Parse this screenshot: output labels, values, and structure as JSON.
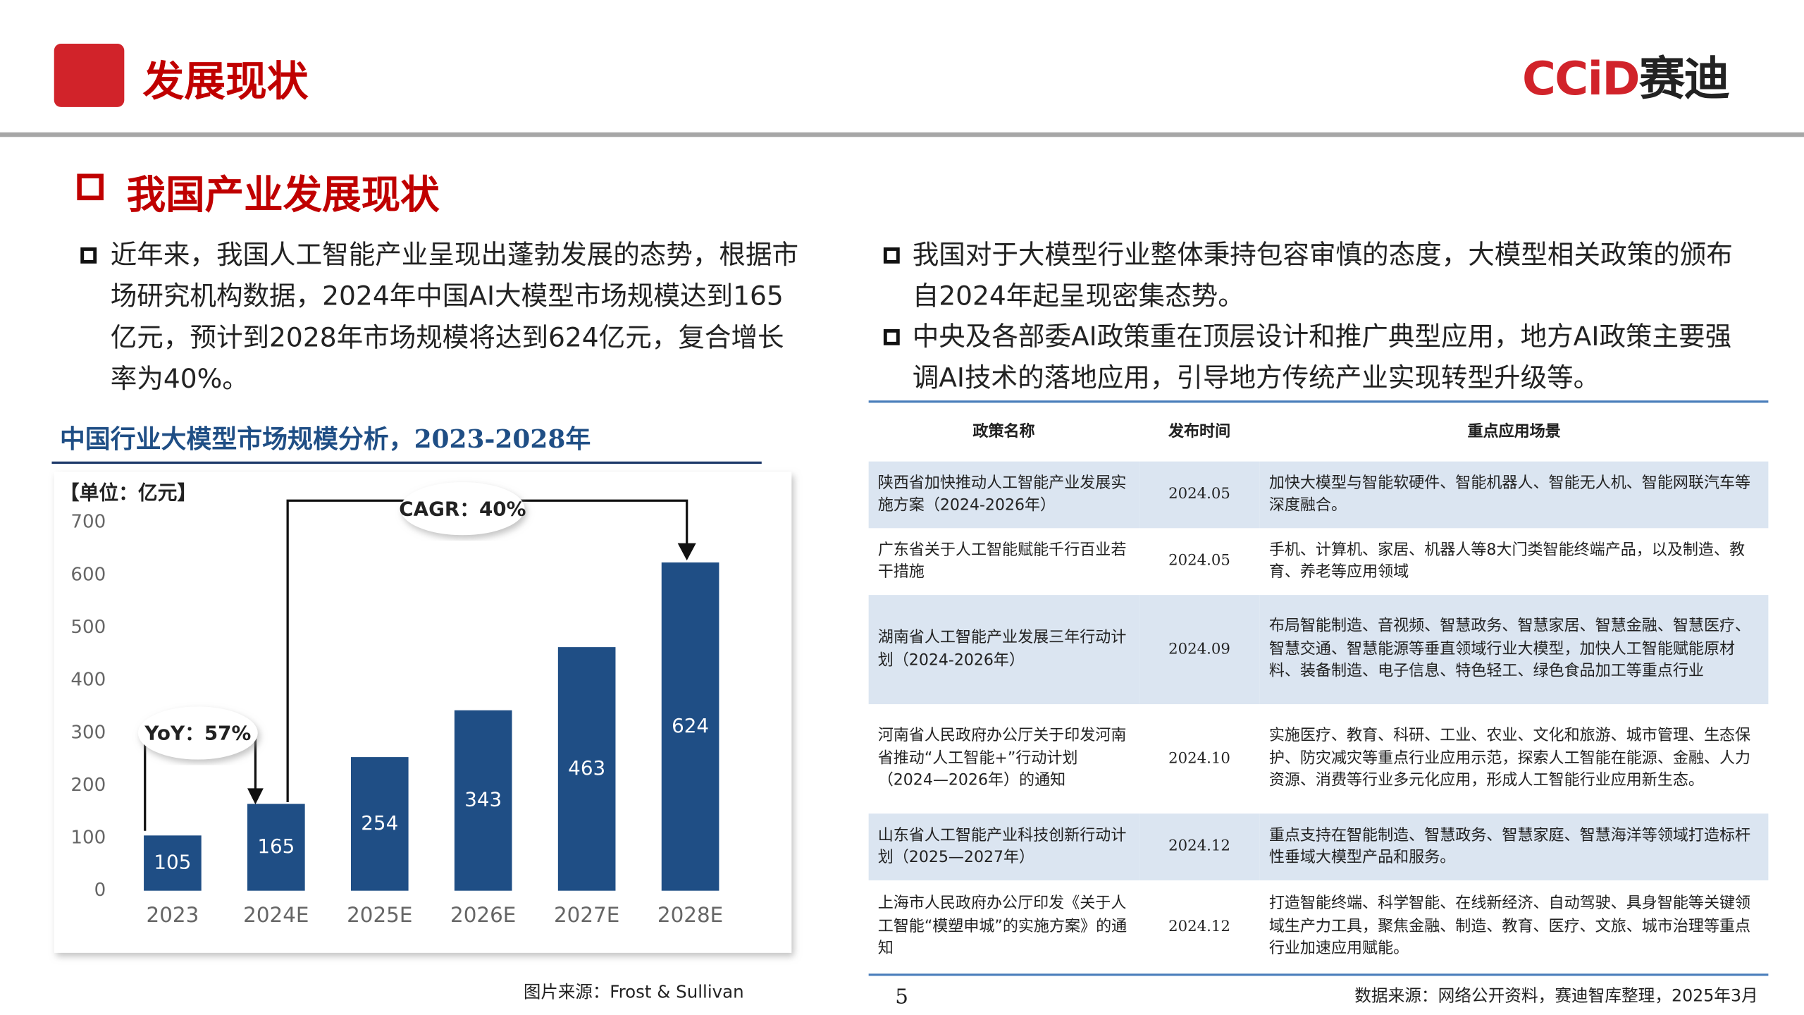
{
  "header": {
    "title": "发展现状",
    "logo_text": "CCiD",
    "logo_cn": "赛迪"
  },
  "section_title": "我国产业发展现状",
  "left_paragraph": "近年来，我国人工智能产业呈现出蓬勃发展的态势，根据市场研究机构数据，2024年中国AI大模型市场规模达到165亿元，预计到2028年市场规模将达到624亿元，复合增长率为40%。",
  "right_bullets": [
    "我国对于大模型行业整体秉持包容审慎的态度，大模型相关政策的颁布自2024年起呈现密集态势。",
    "中央及各部委AI政策重在顶层设计和推广典型应用，地方AI政策主要强调AI技术的落地应用，引导地方传统产业实现转型升级等。"
  ],
  "chart_data": {
    "type": "bar",
    "title": "中国行业大模型市场规模分析，2023-2028年",
    "unit_label": "【单位：亿元】",
    "categories": [
      "2023",
      "2024E",
      "2025E",
      "2026E",
      "2027E",
      "2028E"
    ],
    "values": [
      105,
      165,
      254,
      343,
      463,
      624
    ],
    "color": "#1f4e85",
    "ylim": [
      0,
      700
    ],
    "yticks": [
      0,
      100,
      200,
      300,
      400,
      500,
      600,
      700
    ],
    "annotations": [
      "YoY：57%",
      "CAGR：40%"
    ]
  },
  "chart_source": "图片来源：Frost & Sullivan",
  "table": {
    "headers": [
      "政策名称",
      "发布时间",
      "重点应用场景"
    ],
    "rows": [
      [
        "陕西省加快推动人工智能产业发展实施方案（2024-2026年）",
        "2024.05",
        "加快大模型与智能软硬件、智能机器人、智能无人机、智能网联汽车等深度融合。"
      ],
      [
        "广东省关于人工智能赋能千行百业若干措施",
        "2024.05",
        "手机、计算机、家居、机器人等8大门类智能终端产品，以及制造、教育、养老等应用领域"
      ],
      [
        "湖南省人工智能产业发展三年行动计划（2024-2026年）",
        "2024.09",
        "布局智能制造、音视频、智慧政务、智慧家居、智慧金融、智慧医疗、智慧交通、智慧能源等垂直领域行业大模型，加快人工智能赋能原材料、装备制造、电子信息、特色轻工、绿色食品加工等重点行业"
      ],
      [
        "河南省人民政府办公厅关于印发河南省推动“人工智能+”行动计划（2024—2026年）的通知",
        "2024.10",
        "实施医疗、教育、科研、工业、农业、文化和旅游、城市管理、生态保护、防灾减灾等重点行业应用示范，探索人工智能在能源、金融、人力资源、消费等行业多元化应用，形成人工智能行业应用新生态。"
      ],
      [
        "山东省人工智能产业科技创新行动计划（2025—2027年）",
        "2024.12",
        "重点支持在智能制造、智慧政务、智慧家庭、智慧海洋等领域打造标杆性垂域大模型产品和服务。"
      ],
      [
        "上海市人民政府办公厅印发《关于人工智能“模塑申城”的实施方案》的通知",
        "2024.12",
        "打造智能终端、科学智能、在线新经济、自动驾驶、具身智能等关键领域生产力工具，聚焦金融、制造、教育、医疗、文旅、城市治理等重点行业加速应用赋能。"
      ]
    ]
  },
  "footer": {
    "page": "5",
    "source": "数据来源：网络公开资料，赛迪智库整理，2025年3月"
  }
}
